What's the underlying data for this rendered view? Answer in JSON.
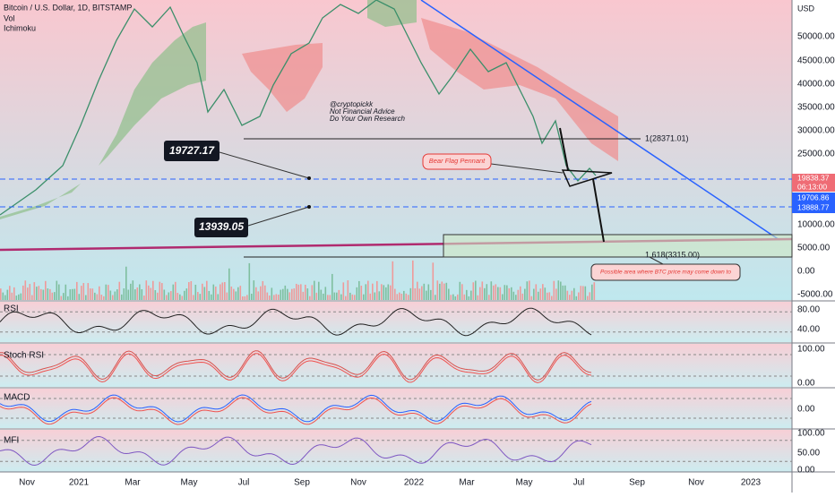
{
  "header": {
    "title": "Bitcoin / U.S. Dollar, 1D, BITSTAMP",
    "vol": "Vol",
    "ichimoku": "Ichimoku"
  },
  "price_axis": {
    "unit": "USD",
    "labels": [
      "50000.00",
      "45000.00",
      "40000.00",
      "35000.00",
      "30000.00",
      "25000.00",
      "10000.00",
      "5000.00",
      "0.00",
      "-5000.00"
    ],
    "last_price": "19838.37",
    "countdown": "06:13:00",
    "tag_a": "19706.86",
    "tag_b": "13888.77"
  },
  "annotations": {
    "level_a": "19727.17",
    "level_b": "13939.05",
    "fib_1": "1(28371.01)",
    "fib_1618": "1.618(3315.00)",
    "pennant": "Bear Flag Pennant",
    "author": "@cryptopickk",
    "disclaimer": "Not Financial Advice",
    "research": "Do Your Own Research",
    "target": "Possible area where BTC price may come down to"
  },
  "panes": [
    {
      "name": "RSI",
      "labels": [
        "80.00",
        "40.00"
      ]
    },
    {
      "name": "Stoch RSI",
      "labels": [
        "100.00",
        "0.00"
      ]
    },
    {
      "name": "MACD",
      "labels": [
        "0.00"
      ]
    },
    {
      "name": "MFI",
      "labels": [
        "100.00",
        "50.00",
        "0.00"
      ]
    }
  ],
  "time_axis": [
    "Nov",
    "2021",
    "Mar",
    "May",
    "Jul",
    "Sep",
    "Nov",
    "2022",
    "Mar",
    "May",
    "Jul",
    "Sep",
    "Nov",
    "2023"
  ]
}
